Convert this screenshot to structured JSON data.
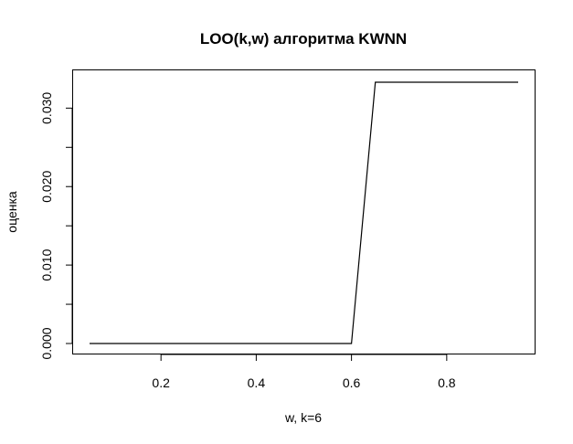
{
  "chart_data": {
    "type": "line",
    "title": "LOO(k,w) алгоритма KWNN",
    "xlabel": "w,  k=6",
    "ylabel": "оценка",
    "xlim": [
      0.05,
      0.95
    ],
    "ylim": [
      0.0,
      0.0333
    ],
    "x_ticks": [
      0.2,
      0.4,
      0.6,
      0.8
    ],
    "x_tick_labels": [
      "0.2",
      "0.4",
      "0.6",
      "0.8"
    ],
    "y_ticks": [
      0.0,
      0.01,
      0.02,
      0.03
    ],
    "y_tick_labels": [
      "0.000",
      "0.010",
      "0.020",
      "0.030"
    ],
    "grid": false,
    "series": [
      {
        "x": [
          0.05,
          0.1,
          0.15,
          0.2,
          0.25,
          0.3,
          0.35,
          0.4,
          0.45,
          0.5,
          0.55,
          0.6,
          0.65,
          0.7,
          0.75,
          0.8,
          0.85,
          0.9,
          0.95
        ],
        "y": [
          0,
          0,
          0,
          0,
          0,
          0,
          0,
          0,
          0,
          0,
          0,
          0,
          0.0333,
          0.0333,
          0.0333,
          0.0333,
          0.0333,
          0.0333,
          0.0333
        ]
      }
    ]
  }
}
